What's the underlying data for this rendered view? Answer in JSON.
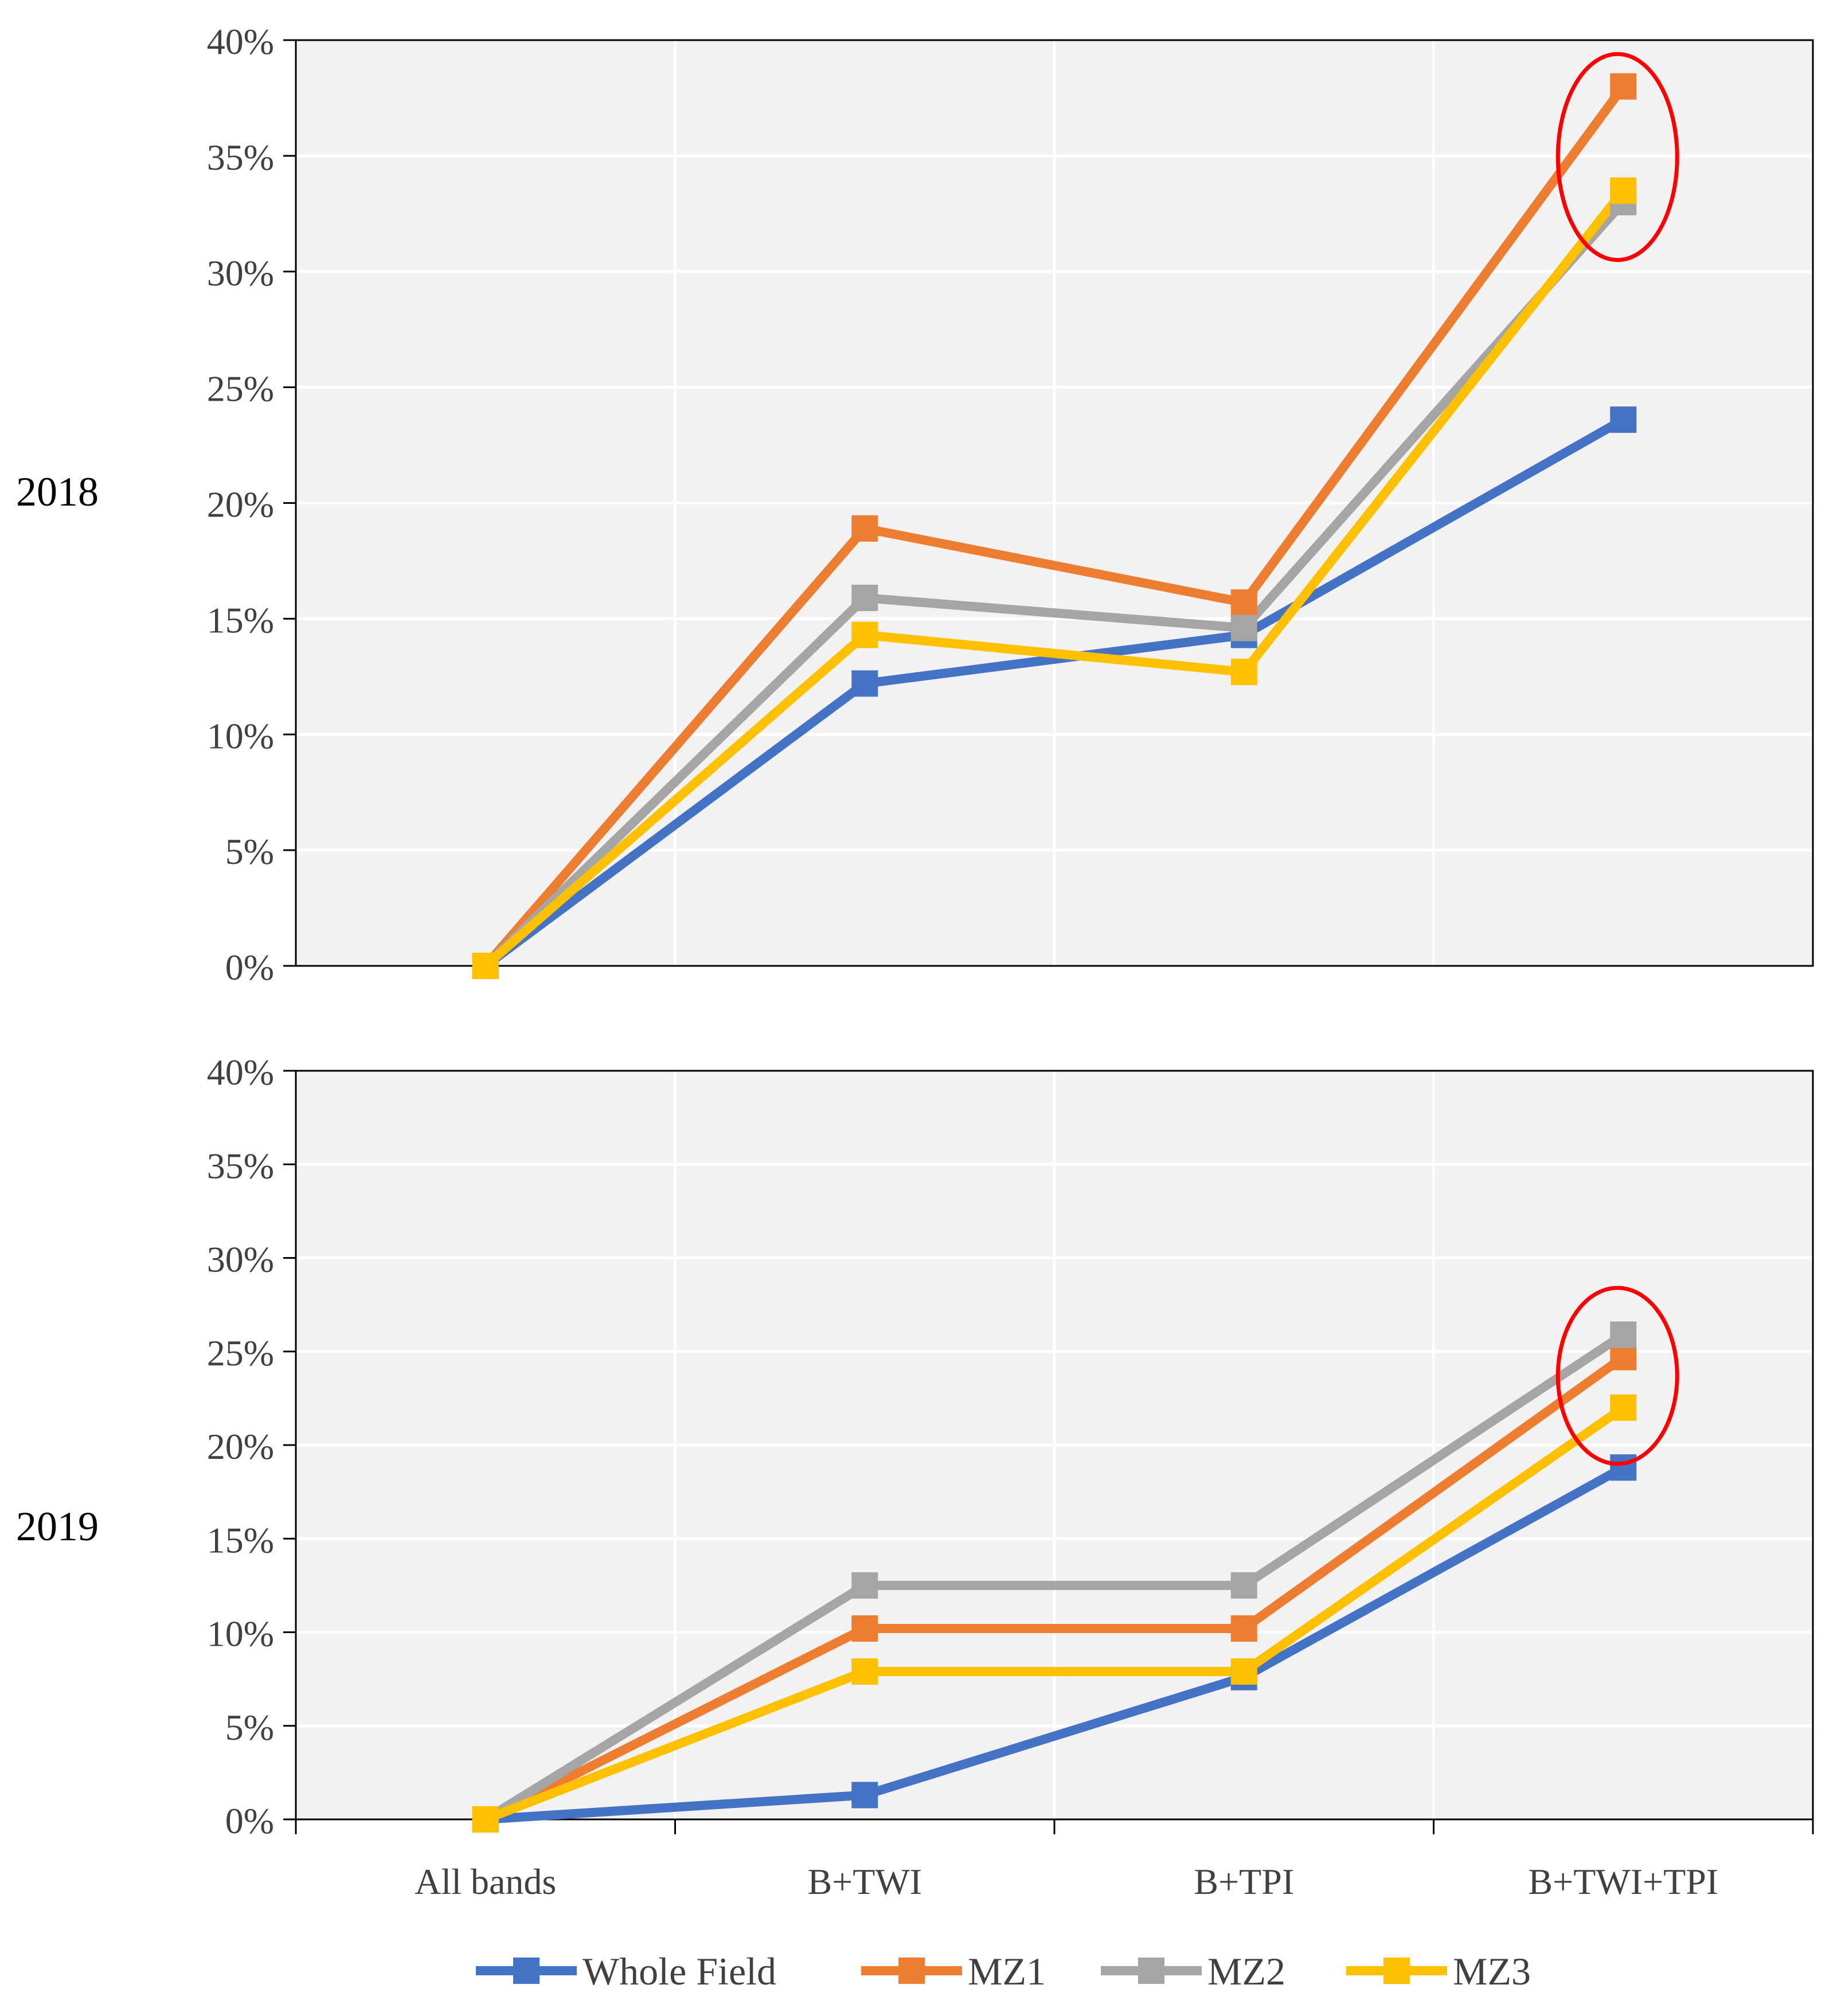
{
  "chart_data": [
    {
      "type": "line",
      "panel_label": "2018",
      "categories": [
        "All bands",
        "B+TWI",
        "B+TPI",
        "B+TWI+TPI"
      ],
      "ylim": [
        0,
        40
      ],
      "yticks": [
        "0%",
        "5%",
        "10%",
        "15%",
        "20%",
        "25%",
        "30%",
        "35%",
        "40%"
      ],
      "grid": true,
      "series": [
        {
          "name": "Whole Field",
          "color": "#4472C4",
          "values": [
            0,
            12.2,
            14.3,
            23.6
          ]
        },
        {
          "name": "MZ1",
          "color": "#ED7D31",
          "values": [
            0,
            18.9,
            15.7,
            38.0
          ]
        },
        {
          "name": "MZ2",
          "color": "#A5A5A5",
          "values": [
            0,
            15.9,
            14.6,
            33.0
          ]
        },
        {
          "name": "MZ3",
          "color": "#FFC000",
          "values": [
            0,
            14.3,
            12.7,
            33.5
          ]
        }
      ],
      "annotation": {
        "shape": "ellipse",
        "color": "#FF0000",
        "category": "B+TWI+TPI",
        "y_range": [
          30.5,
          39.4
        ]
      }
    },
    {
      "type": "line",
      "panel_label": "2019",
      "categories": [
        "All bands",
        "B+TWI",
        "B+TPI",
        "B+TWI+TPI"
      ],
      "ylim": [
        0,
        40
      ],
      "yticks": [
        "0%",
        "5%",
        "10%",
        "15%",
        "20%",
        "25%",
        "30%",
        "35%",
        "40%"
      ],
      "grid": true,
      "series": [
        {
          "name": "Whole Field",
          "color": "#4472C4",
          "values": [
            0,
            1.3,
            7.6,
            18.8
          ]
        },
        {
          "name": "MZ1",
          "color": "#ED7D31",
          "values": [
            0,
            10.2,
            10.2,
            24.7
          ]
        },
        {
          "name": "MZ2",
          "color": "#A5A5A5",
          "values": [
            0,
            12.5,
            12.5,
            25.9
          ]
        },
        {
          "name": "MZ3",
          "color": "#FFC000",
          "values": [
            0,
            7.9,
            7.9,
            22.0
          ]
        }
      ],
      "annotation": {
        "shape": "ellipse",
        "color": "#FF0000",
        "category": "B+TWI+TPI",
        "y_range": [
          19.0,
          28.4
        ]
      }
    }
  ],
  "legend": {
    "position": "bottom",
    "entries": [
      {
        "name": "Whole Field",
        "color": "#4472C4"
      },
      {
        "name": "MZ1",
        "color": "#ED7D31"
      },
      {
        "name": "MZ2",
        "color": "#A5A5A5"
      },
      {
        "name": "MZ3",
        "color": "#FFC000"
      }
    ]
  },
  "colors": {
    "plot_background": "#F2F2F2",
    "gridline": "#FFFFFF",
    "axis": "#000000",
    "annotation": "#FF0000"
  }
}
